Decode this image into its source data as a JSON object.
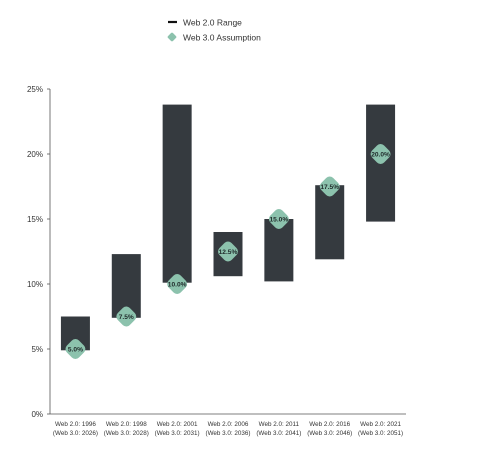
{
  "chart_data": {
    "type": "floating-bar",
    "legend": {
      "placement": "top-center",
      "entries": [
        {
          "label": "Web 2.0 Range",
          "marker": "line",
          "color": "#111111"
        },
        {
          "label": "Web 3.0 Assumption",
          "marker": "diamond",
          "color": "#8cc2ad"
        }
      ]
    },
    "y_axis": {
      "range": [
        0,
        25
      ],
      "ticks": [
        0,
        5,
        10,
        15,
        20,
        25
      ],
      "tick_labels": [
        "0%",
        "5%",
        "10%",
        "15%",
        "20%",
        "25%"
      ]
    },
    "categories": [
      [
        "Web 2.0: 1996",
        "(Web 3.0: 2026)"
      ],
      [
        "Web 2.0: 1998",
        "(Web 3.0: 2028)"
      ],
      [
        "Web 2.0: 2001",
        "(Web 3.0: 2031)"
      ],
      [
        "Web 2.0: 2006",
        "(Web 3.0: 2036)"
      ],
      [
        "Web 2.0: 2011",
        "(Web 3.0: 2041)"
      ],
      [
        "Web 2.0: 2016",
        "(Web 3.0: 2046)"
      ],
      [
        "Web 2.0: 2021",
        "(Web 3.0: 2051)"
      ]
    ],
    "series": [
      {
        "name": "Web 2.0 Range",
        "ranges": [
          [
            4.9,
            7.5
          ],
          [
            7.4,
            12.3
          ],
          [
            10.1,
            23.8
          ],
          [
            10.6,
            14.0
          ],
          [
            10.2,
            15.0
          ],
          [
            11.9,
            17.6
          ],
          [
            14.8,
            23.8
          ]
        ]
      },
      {
        "name": "Web 3.0 Assumption",
        "values": [
          5.0,
          7.5,
          10.0,
          12.5,
          15.0,
          17.5,
          20.0
        ],
        "labels": [
          "5.0%",
          "7.5%",
          "10.0%",
          "12.5%",
          "15.0%",
          "17.5%",
          "20.0%"
        ]
      }
    ],
    "colors": {
      "range": "#353a3f",
      "marker": "#8cc2ad",
      "axis": "#555555",
      "text": "#333333"
    },
    "grid": false
  }
}
